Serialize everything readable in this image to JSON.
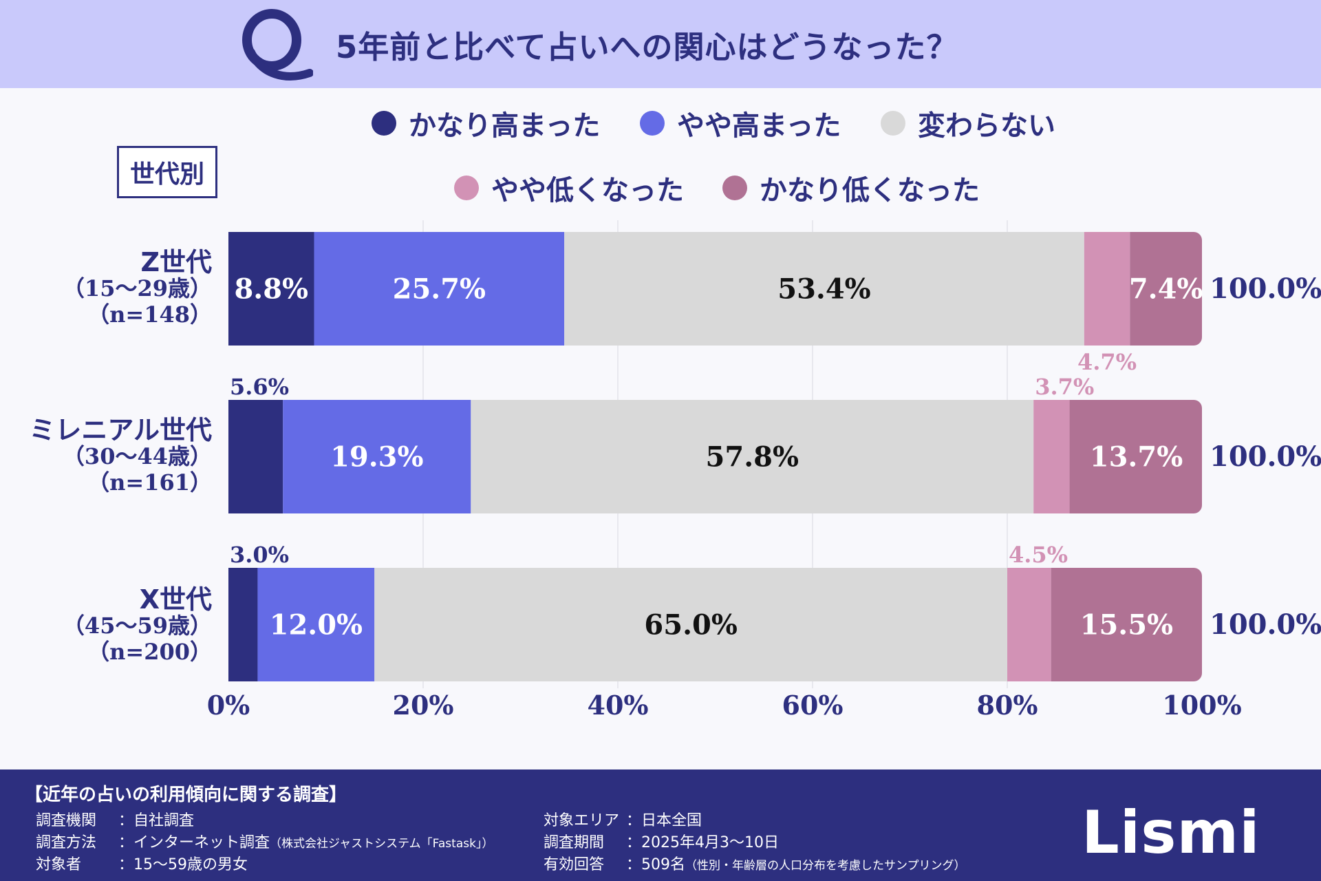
{
  "header": {
    "q_letter": "Q",
    "title": "5年前と比べて占いへの関心はどうなった？"
  },
  "legend": [
    {
      "label": "かなり高まった",
      "color": "#2d2f7f"
    },
    {
      "label": "やや高まった",
      "color": "#646be6"
    },
    {
      "label": "変わらない",
      "color": "#d9d9d9"
    },
    {
      "label": "やや低くなった",
      "color": "#d292b5"
    },
    {
      "label": "かなり低くなった",
      "color": "#b07294"
    }
  ],
  "segment_label": "世代別",
  "rows": [
    {
      "name": "Z世代",
      "age": "（15〜29歳）",
      "n": "（n=148）",
      "total": "100.0%"
    },
    {
      "name": "ミレニアル世代",
      "age": "（30〜44歳）",
      "n": "（n=161）",
      "total": "100.0%"
    },
    {
      "name": "X世代",
      "age": "（45〜59歳）",
      "n": "（n=200）",
      "total": "100.0%"
    }
  ],
  "chart_data": {
    "type": "bar",
    "orientation": "horizontal",
    "stacked": true,
    "categories": [
      "Z世代",
      "ミレニアル世代",
      "X世代"
    ],
    "series": [
      {
        "name": "かなり高まった",
        "values": [
          8.8,
          5.6,
          3.0
        ],
        "labels": [
          "8.8%",
          "5.6%",
          "3.0%"
        ]
      },
      {
        "name": "やや高まった",
        "values": [
          25.7,
          19.3,
          12.0
        ],
        "labels": [
          "25.7%",
          "19.3%",
          "12.0%"
        ]
      },
      {
        "name": "変わらない",
        "values": [
          53.4,
          57.8,
          65.0
        ],
        "labels": [
          "53.4%",
          "57.8%",
          "65.0%"
        ]
      },
      {
        "name": "やや低くなった",
        "values": [
          4.7,
          3.7,
          4.5
        ],
        "labels": [
          "4.7%",
          "3.7%",
          "4.5%"
        ]
      },
      {
        "name": "かなり低くなった",
        "values": [
          7.4,
          13.7,
          15.5
        ],
        "labels": [
          "7.4%",
          "13.7%",
          "15.5%"
        ]
      }
    ],
    "xlim": [
      0,
      100
    ],
    "ticks": [
      "0%",
      "20%",
      "40%",
      "60%",
      "80%",
      "100%"
    ]
  },
  "footer": {
    "title": "【近年の占いの利用傾向に関する調査】",
    "left": [
      {
        "key": "調査機関",
        "value": "：自社調査",
        "note": ""
      },
      {
        "key": "調査方法",
        "value": "：インターネット調査",
        "note": "（株式会社ジャストシステム「Fastask」）"
      },
      {
        "key": "対象者",
        "value": "：15〜59歳の男女",
        "note": ""
      }
    ],
    "right": [
      {
        "key": "対象エリア",
        "value": "：日本全国",
        "note": ""
      },
      {
        "key": "調査期間",
        "value": "：2025年4月3〜10日",
        "note": ""
      },
      {
        "key": "有効回答",
        "value": "：509名",
        "note": "（性別・年齢層の人口分布を考慮したサンプリング）"
      }
    ],
    "brand": "Lismi"
  }
}
